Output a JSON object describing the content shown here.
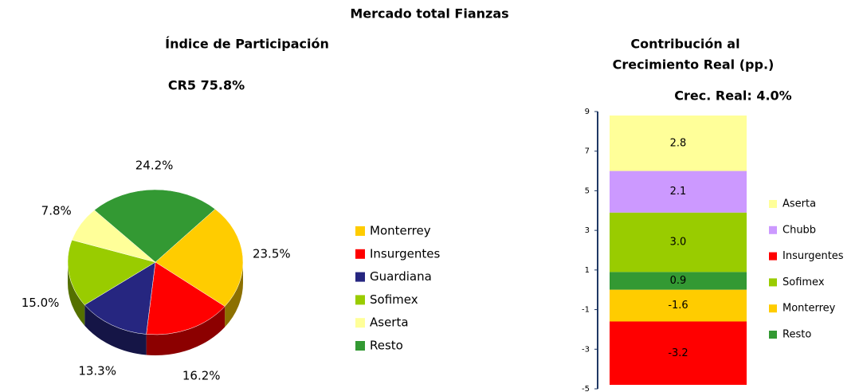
{
  "title": "Mercado total Fianzas",
  "chart_data": [
    {
      "type": "pie",
      "title": "Índice de Participación",
      "subtitle": "CR5 75.8%",
      "categories": [
        "Monterrey",
        "Insurgentes",
        "Guardiana",
        "Sofimex",
        "Aserta",
        "Resto"
      ],
      "values": [
        23.5,
        16.2,
        13.3,
        15.0,
        7.8,
        24.2
      ],
      "value_labels": [
        "23.5%",
        "16.2%",
        "13.3%",
        "15.0%",
        "7.8%",
        "24.2%"
      ],
      "colors": [
        "#ffcc00",
        "#ff0000",
        "#262680",
        "#99cc00",
        "#ffff99",
        "#339933"
      ]
    },
    {
      "type": "stacked_bar",
      "title": [
        "Contribución al",
        "Crecimiento Real  (pp.)"
      ],
      "subtitle": "Crec. Real: 4.0%",
      "series": [
        {
          "name": "Aserta",
          "color": "#ffff99",
          "values": [
            2.8
          ],
          "value_labels": [
            "2.8"
          ]
        },
        {
          "name": "Chubb",
          "color": "#cc99ff",
          "values": [
            2.1
          ],
          "value_labels": [
            "2.1"
          ]
        },
        {
          "name": "Insurgentes",
          "color": "#ff0000",
          "values": [
            -3.2
          ],
          "value_labels": [
            "-3.2"
          ]
        },
        {
          "name": "Sofimex",
          "color": "#99cc00",
          "values": [
            3.0
          ],
          "value_labels": [
            "3.0"
          ]
        },
        {
          "name": "Monterrey",
          "color": "#ffcc00",
          "values": [
            -1.6
          ],
          "value_labels": [
            "-1.6"
          ]
        },
        {
          "name": "Resto",
          "color": "#339933",
          "values": [
            0.9
          ],
          "value_labels": [
            "0.9"
          ]
        }
      ],
      "ylim": [
        -5,
        9
      ],
      "yticks": [
        -5,
        -3,
        -1,
        1,
        3,
        5,
        7,
        9
      ]
    }
  ]
}
